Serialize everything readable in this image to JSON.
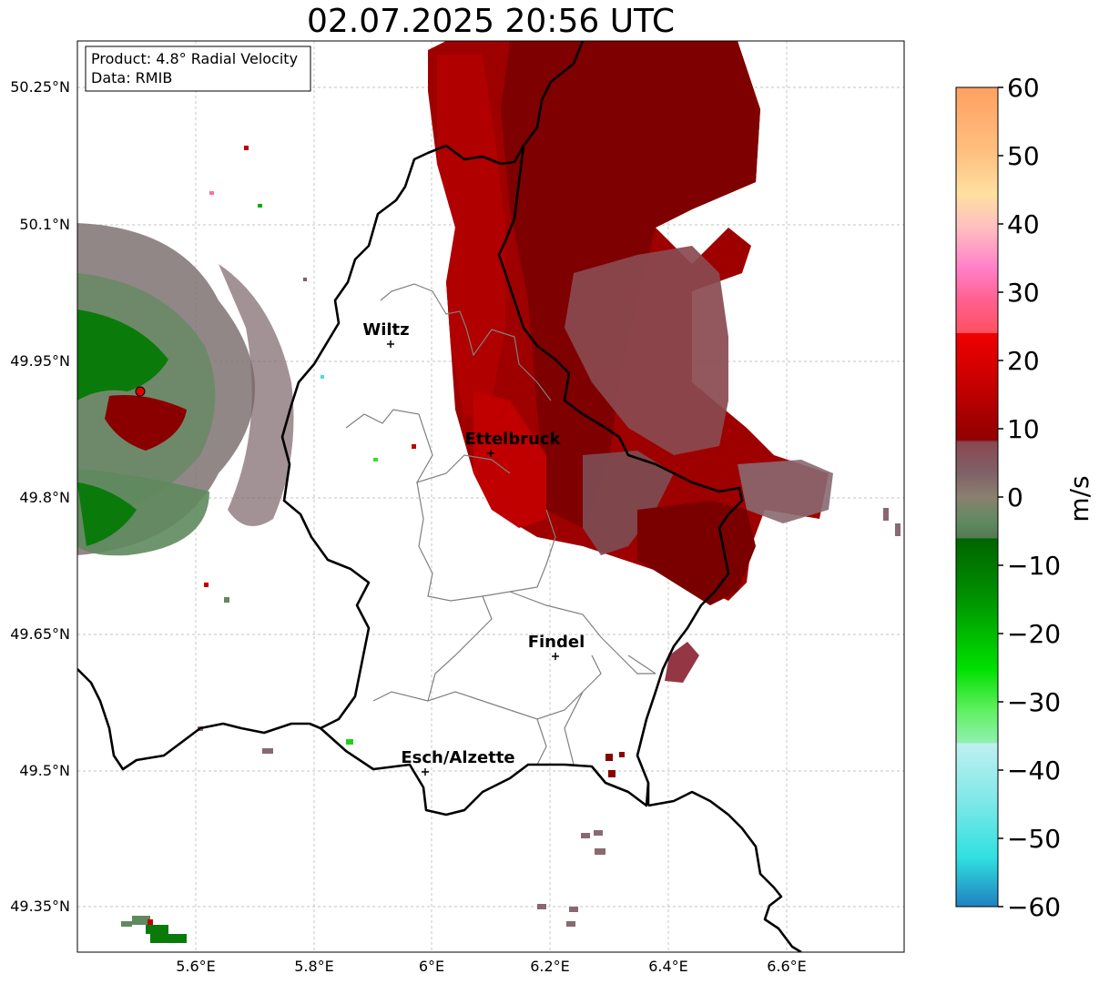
{
  "title": "02.07.2025 20:56 UTC",
  "info_box": {
    "product": "Product: 4.8° Radial Velocity",
    "data": "Data: RMIB"
  },
  "map": {
    "lat_ticks": [
      "50.25°N",
      "50.1°N",
      "49.95°N",
      "49.8°N",
      "49.65°N",
      "49.5°N",
      "49.35°N"
    ],
    "lon_ticks": [
      "5.6°E",
      "5.8°E",
      "6°E",
      "6.2°E",
      "6.4°E",
      "6.6°E"
    ],
    "cities": [
      {
        "name": "Wiltz"
      },
      {
        "name": "Ettelbruck"
      },
      {
        "name": "Findel"
      },
      {
        "name": "Esch/Alzette"
      }
    ]
  },
  "colorbar": {
    "unit": "m/s",
    "ticks": [
      "60",
      "50",
      "40",
      "30",
      "20",
      "10",
      "0",
      "−10",
      "−20",
      "−30",
      "−40",
      "−50",
      "−60"
    ],
    "range": [
      -60,
      60
    ],
    "colors": {
      "pos_high": "#ffa060",
      "pos_mid": "#ff6080",
      "pos_red": "#e00000",
      "pos_dark": "#7a0000",
      "near_zero": "#8a7070",
      "neg_dark": "#006400",
      "neg_green": "#00e000",
      "neg_cyan": "#30e0e0",
      "neg_blue": "#2080c0"
    }
  }
}
